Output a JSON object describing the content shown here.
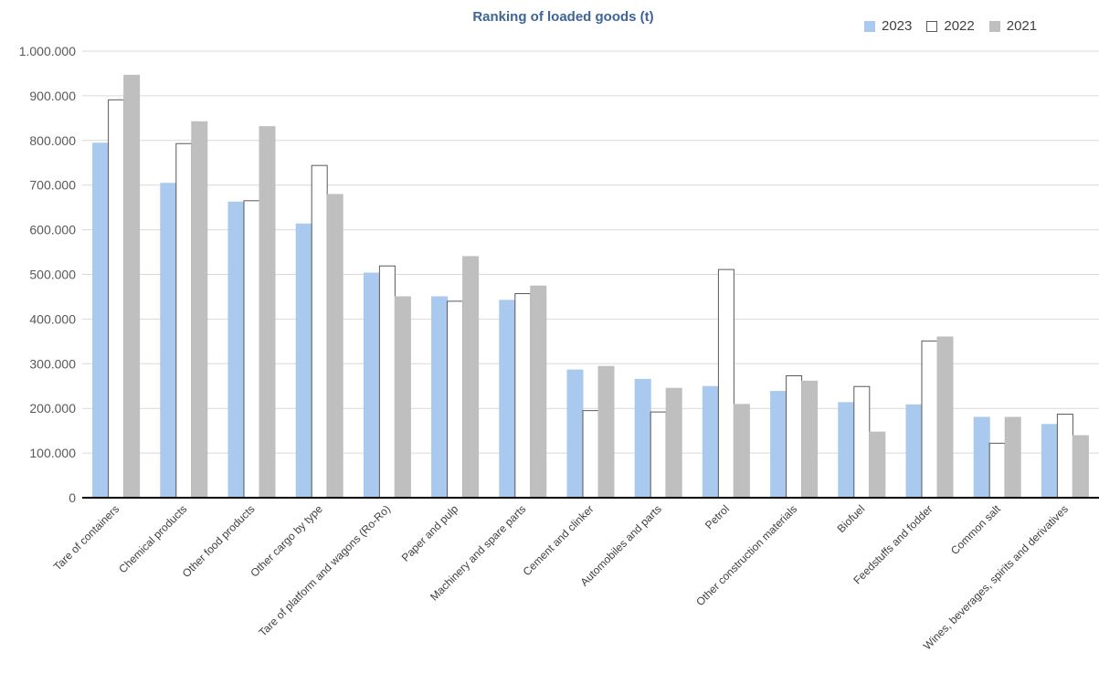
{
  "chart_data": {
    "type": "bar",
    "title": "Ranking of loaded goods (t)",
    "xlabel": "",
    "ylabel": "",
    "ylim": [
      0,
      1000000
    ],
    "yticks": [
      0,
      100000,
      200000,
      300000,
      400000,
      500000,
      600000,
      700000,
      800000,
      900000,
      1000000
    ],
    "ytick_labels": [
      "0",
      "100.000",
      "200.000",
      "300.000",
      "400.000",
      "500.000",
      "600.000",
      "700.000",
      "800.000",
      "900.000",
      "1.000.000"
    ],
    "grid": true,
    "legend_position": "top-right",
    "categories": [
      "Tare of containers",
      "Chemical products",
      "Other food products",
      "Other cargo by type",
      "Tare of platform and wagons (Ro-Ro)",
      "Paper and pulp",
      "Machinery and spare parts",
      "Cement and clinker",
      "Automobiles and parts",
      "Petrol",
      "Other construction materials",
      "Biofuel",
      "Feedstuffs and fodder",
      "Common salt",
      "Wines, beverages, spirits and derivatives"
    ],
    "series": [
      {
        "name": "2023",
        "color": "#a9c9ee",
        "stroke": "#a9c9ee",
        "values": [
          794000,
          704000,
          662000,
          613000,
          503000,
          450000,
          442000,
          286000,
          265000,
          249000,
          238000,
          213000,
          208000,
          180000,
          164000
        ]
      },
      {
        "name": "2022",
        "color": "#ffffff",
        "stroke": "#595959",
        "values": [
          891000,
          793000,
          665000,
          744000,
          519000,
          440000,
          457000,
          195000,
          192000,
          511000,
          273000,
          249000,
          351000,
          122000,
          187000
        ]
      },
      {
        "name": "2021",
        "color": "#bfbfbf",
        "stroke": "#bfbfbf",
        "values": [
          946000,
          842000,
          831000,
          679000,
          450000,
          540000,
          474000,
          294000,
          245000,
          209000,
          261000,
          147000,
          360000,
          180000,
          139000
        ]
      }
    ]
  }
}
